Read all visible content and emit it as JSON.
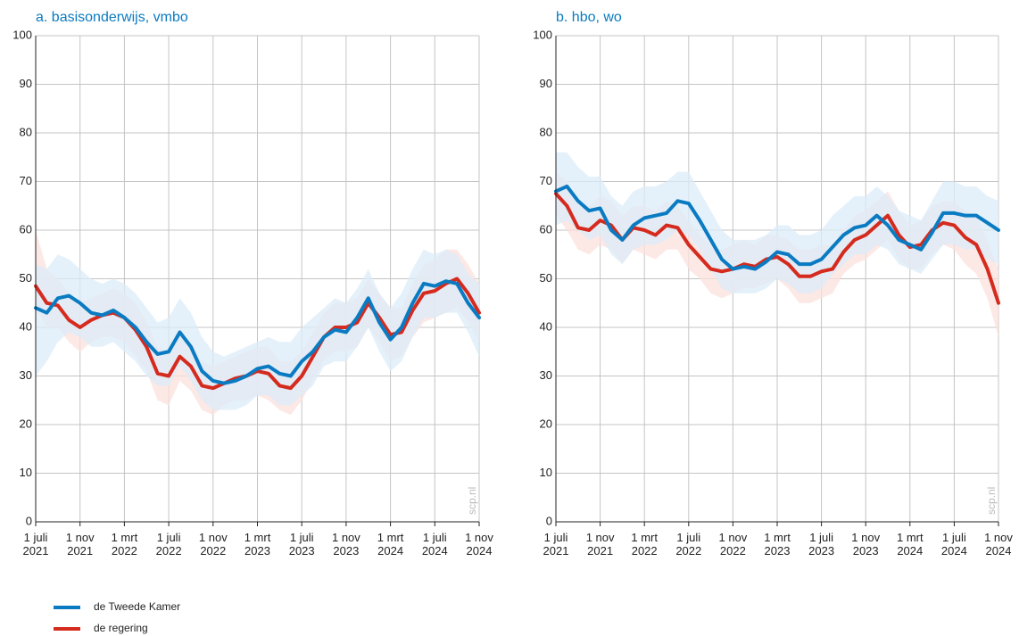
{
  "chart_data": [
    {
      "type": "line",
      "title": "a. basisonderwijs, vmbo",
      "watermark": "scp.nl",
      "x": [
        "2021-07",
        "2021-08",
        "2021-09",
        "2021-10",
        "2021-11",
        "2021-12",
        "2022-01",
        "2022-02",
        "2022-03",
        "2022-04",
        "2022-05",
        "2022-06",
        "2022-07",
        "2022-08",
        "2022-09",
        "2022-10",
        "2022-11",
        "2022-12",
        "2023-01",
        "2023-02",
        "2023-03",
        "2023-04",
        "2023-05",
        "2023-06",
        "2023-07",
        "2023-08",
        "2023-09",
        "2023-10",
        "2023-11",
        "2023-12",
        "2024-01",
        "2024-02",
        "2024-03",
        "2024-04",
        "2024-05",
        "2024-06",
        "2024-07",
        "2024-08",
        "2024-09",
        "2024-10",
        "2024-11"
      ],
      "series": [
        {
          "name": "de Tweede Kamer",
          "color": "#0a7bc2",
          "band_color": "#dcecf8",
          "values": [
            44,
            43,
            46,
            46.5,
            45,
            43,
            42.5,
            43.5,
            42,
            40,
            37,
            34.5,
            35,
            39,
            36,
            31,
            29,
            28.5,
            29,
            30,
            31.5,
            32,
            30.5,
            30,
            33,
            35,
            38,
            39.5,
            39,
            42,
            46,
            41,
            37.5,
            40,
            45,
            49,
            48.5,
            49.5,
            49,
            45,
            42
          ],
          "upper": [
            53,
            52,
            55,
            54,
            52,
            50,
            49,
            50,
            49,
            47,
            44,
            41,
            42,
            46,
            43,
            38,
            35,
            34,
            35,
            36,
            37,
            38,
            37,
            37,
            40,
            42,
            44,
            46,
            45,
            48,
            52,
            47,
            44,
            47,
            52,
            56,
            55,
            56,
            55,
            51,
            49
          ],
          "lower": [
            30,
            33,
            37,
            39,
            38,
            36,
            36,
            37,
            35,
            33,
            30,
            28,
            28,
            32,
            29,
            25,
            23,
            23,
            23,
            24,
            26,
            26,
            24,
            24,
            26,
            28,
            32,
            33,
            33,
            36,
            40,
            35,
            31,
            33,
            38,
            42,
            42,
            43,
            43,
            39,
            34
          ]
        },
        {
          "name": "de regering",
          "color": "#d52b1e",
          "band_color": "#fbe0dc",
          "values": [
            48.5,
            45,
            44.5,
            41.5,
            40,
            41.5,
            42.5,
            43,
            42,
            39.5,
            36,
            30.5,
            30,
            34,
            32,
            28,
            27.5,
            28.5,
            29.5,
            30,
            31,
            30.5,
            28,
            27.5,
            30,
            34,
            38,
            40,
            40,
            41,
            45,
            42,
            38.5,
            39,
            43.5,
            47,
            47.5,
            49,
            50,
            47,
            43
          ],
          "upper": [
            60,
            52,
            50,
            47,
            45,
            46,
            47,
            48,
            47,
            45,
            41,
            36,
            35,
            39,
            37,
            33,
            32,
            33,
            34,
            35,
            36,
            36,
            33,
            33,
            35,
            39,
            43,
            45,
            45,
            46,
            50,
            47,
            44,
            44,
            49,
            53,
            54,
            56,
            56,
            53,
            49
          ],
          "lower": [
            44,
            40,
            40,
            37,
            35,
            37,
            38,
            38,
            37,
            34,
            31,
            25,
            24,
            29,
            27,
            23,
            22,
            24,
            25,
            25,
            26,
            25,
            23,
            22,
            25,
            29,
            33,
            35,
            35,
            36,
            40,
            37,
            33,
            34,
            38,
            41,
            42,
            43,
            44,
            41,
            37
          ]
        }
      ],
      "xlim": [
        "2021-07-01",
        "2024-11-01"
      ],
      "xticks": [
        {
          "value": "2021-07-01",
          "label": "1 juli 2021"
        },
        {
          "value": "2021-11-01",
          "label": "1 nov 2021"
        },
        {
          "value": "2022-03-01",
          "label": "1 mrt 2022"
        },
        {
          "value": "2022-07-01",
          "label": "1 juli 2022"
        },
        {
          "value": "2022-11-01",
          "label": "1 nov 2022"
        },
        {
          "value": "2023-03-01",
          "label": "1 mrt 2023"
        },
        {
          "value": "2023-07-01",
          "label": "1 juli 2023"
        },
        {
          "value": "2023-11-01",
          "label": "1 nov 2023"
        },
        {
          "value": "2024-03-01",
          "label": "1 mrt 2024"
        },
        {
          "value": "2024-07-01",
          "label": "1 juli 2024"
        },
        {
          "value": "2024-11-01",
          "label": "1 nov 2024"
        }
      ],
      "ylim": [
        0,
        100
      ],
      "yticks": [
        0,
        10,
        20,
        30,
        40,
        50,
        60,
        70,
        80,
        90,
        100
      ],
      "grid": true
    },
    {
      "type": "line",
      "title": "b. hbo, wo",
      "watermark": "scp.nl",
      "x": [
        "2021-07",
        "2021-08",
        "2021-09",
        "2021-10",
        "2021-11",
        "2021-12",
        "2022-01",
        "2022-02",
        "2022-03",
        "2022-04",
        "2022-05",
        "2022-06",
        "2022-07",
        "2022-08",
        "2022-09",
        "2022-10",
        "2022-11",
        "2022-12",
        "2023-01",
        "2023-02",
        "2023-03",
        "2023-04",
        "2023-05",
        "2023-06",
        "2023-07",
        "2023-08",
        "2023-09",
        "2023-10",
        "2023-11",
        "2023-12",
        "2024-01",
        "2024-02",
        "2024-03",
        "2024-04",
        "2024-05",
        "2024-06",
        "2024-07",
        "2024-08",
        "2024-09",
        "2024-10",
        "2024-11"
      ],
      "series": [
        {
          "name": "de Tweede Kamer",
          "color": "#0a7bc2",
          "band_color": "#dcecf8",
          "values": [
            68,
            69,
            66,
            64,
            64.5,
            60,
            58,
            61,
            62.5,
            63,
            63.5,
            66,
            65.5,
            62,
            58,
            54,
            52,
            52.5,
            52,
            53.5,
            55.5,
            55,
            53,
            53,
            54,
            56.5,
            59,
            60.5,
            61,
            63,
            61,
            58,
            57,
            56,
            59.5,
            63.5,
            63.5,
            63,
            63,
            61.5,
            60
          ],
          "upper": [
            76,
            76,
            73,
            71,
            71,
            67,
            65,
            68,
            69,
            69,
            70,
            72,
            72,
            68,
            64,
            60,
            58,
            58,
            58,
            59,
            61,
            61,
            59,
            59,
            60,
            63,
            65,
            67,
            67,
            69,
            67,
            64,
            63,
            62,
            66,
            70,
            70,
            69,
            69,
            67,
            66
          ],
          "lower": [
            61,
            62,
            60,
            58,
            59,
            55,
            53,
            56,
            57,
            57,
            58,
            60,
            59,
            56,
            52,
            48,
            47,
            47,
            47,
            48,
            50,
            49,
            47,
            47,
            48,
            51,
            53,
            55,
            55,
            57,
            56,
            53,
            52,
            51,
            54,
            57,
            57,
            56,
            56,
            54,
            53
          ]
        },
        {
          "name": "de regering",
          "color": "#d52b1e",
          "band_color": "#fbe0dc",
          "values": [
            67.5,
            65,
            60.5,
            60,
            62,
            61,
            58,
            60.5,
            60,
            59,
            61,
            60.5,
            57,
            54.5,
            52,
            51.5,
            52,
            53,
            52.5,
            54,
            54.5,
            53,
            50.5,
            50.5,
            51.5,
            52,
            55.5,
            58,
            59,
            61,
            63,
            59,
            56.5,
            57,
            60,
            61.5,
            61,
            58.5,
            57,
            52,
            45
          ],
          "upper": [
            72,
            70,
            66,
            65,
            67,
            66,
            63,
            65,
            65,
            64,
            66,
            65,
            62,
            59,
            57,
            56,
            57,
            58,
            57,
            59,
            59,
            58,
            56,
            56,
            57,
            57,
            60,
            63,
            64,
            66,
            68,
            64,
            61,
            62,
            65,
            66,
            66,
            64,
            63,
            58,
            52
          ],
          "lower": [
            63,
            60,
            56,
            55,
            57,
            56,
            53,
            56,
            55,
            54,
            56,
            56,
            52,
            50,
            47,
            46,
            47,
            48,
            48,
            49,
            50,
            48,
            45,
            45,
            46,
            47,
            51,
            53,
            54,
            56,
            58,
            54,
            52,
            52,
            55,
            57,
            56,
            53,
            51,
            46,
            38
          ]
        }
      ],
      "xlim": [
        "2021-07-01",
        "2024-11-01"
      ],
      "xticks": [
        {
          "value": "2021-07-01",
          "label": "1 juli 2021"
        },
        {
          "value": "2021-11-01",
          "label": "1 nov 2021"
        },
        {
          "value": "2022-03-01",
          "label": "1 mrt 2022"
        },
        {
          "value": "2022-07-01",
          "label": "1 juli 2022"
        },
        {
          "value": "2022-11-01",
          "label": "1 nov 2022"
        },
        {
          "value": "2023-03-01",
          "label": "1 mrt 2023"
        },
        {
          "value": "2023-07-01",
          "label": "1 juli 2023"
        },
        {
          "value": "2023-11-01",
          "label": "1 nov 2023"
        },
        {
          "value": "2024-03-01",
          "label": "1 mrt 2024"
        },
        {
          "value": "2024-07-01",
          "label": "1 juli 2024"
        },
        {
          "value": "2024-11-01",
          "label": "1 nov 2024"
        }
      ],
      "ylim": [
        0,
        100
      ],
      "yticks": [
        0,
        10,
        20,
        30,
        40,
        50,
        60,
        70,
        80,
        90,
        100
      ],
      "grid": true
    }
  ]
}
